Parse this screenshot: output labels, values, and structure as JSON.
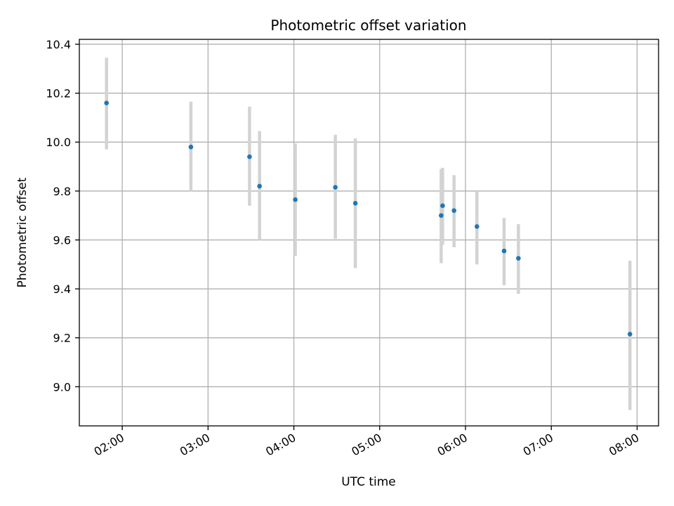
{
  "chart_data": {
    "type": "scatter",
    "title": "Photometric offset variation",
    "xlabel": "UTC time",
    "ylabel": "Photometric offset",
    "grid": true,
    "xlim": [
      "01:30",
      "08:15"
    ],
    "ylim": [
      8.84,
      10.42
    ],
    "x_ticks": [
      "02:00",
      "03:00",
      "04:00",
      "05:00",
      "06:00",
      "07:00",
      "08:00"
    ],
    "y_ticks": [
      "9.0",
      "9.2",
      "9.4",
      "9.6",
      "9.8",
      "10.0",
      "10.2",
      "10.4"
    ],
    "colors": {
      "points": "#1f77b4",
      "error_bars": "#d3d3d3",
      "grid": "#b0b0b0",
      "axes": "#000000"
    },
    "series": [
      {
        "points": [
          {
            "x": "01:49",
            "y": 10.16,
            "y_low": 9.97,
            "y_high": 10.345
          },
          {
            "x": "02:48",
            "y": 9.98,
            "y_low": 9.8,
            "y_high": 10.165
          },
          {
            "x": "03:29",
            "y": 9.94,
            "y_low": 9.74,
            "y_high": 10.145
          },
          {
            "x": "03:36",
            "y": 9.82,
            "y_low": 9.6,
            "y_high": 10.045
          },
          {
            "x": "04:01",
            "y": 9.765,
            "y_low": 9.535,
            "y_high": 9.995
          },
          {
            "x": "04:29",
            "y": 9.815,
            "y_low": 9.605,
            "y_high": 10.03
          },
          {
            "x": "04:43",
            "y": 9.75,
            "y_low": 9.485,
            "y_high": 10.015
          },
          {
            "x": "05:43",
            "y": 9.7,
            "y_low": 9.505,
            "y_high": 9.89
          },
          {
            "x": "05:44",
            "y": 9.74,
            "y_low": 9.58,
            "y_high": 9.895
          },
          {
            "x": "05:52",
            "y": 9.72,
            "y_low": 9.57,
            "y_high": 9.865
          },
          {
            "x": "06:08",
            "y": 9.655,
            "y_low": 9.5,
            "y_high": 9.8
          },
          {
            "x": "06:27",
            "y": 9.555,
            "y_low": 9.415,
            "y_high": 9.69
          },
          {
            "x": "06:37",
            "y": 9.525,
            "y_low": 9.38,
            "y_high": 9.665
          },
          {
            "x": "07:55",
            "y": 9.215,
            "y_low": 8.905,
            "y_high": 9.515
          }
        ]
      }
    ]
  }
}
